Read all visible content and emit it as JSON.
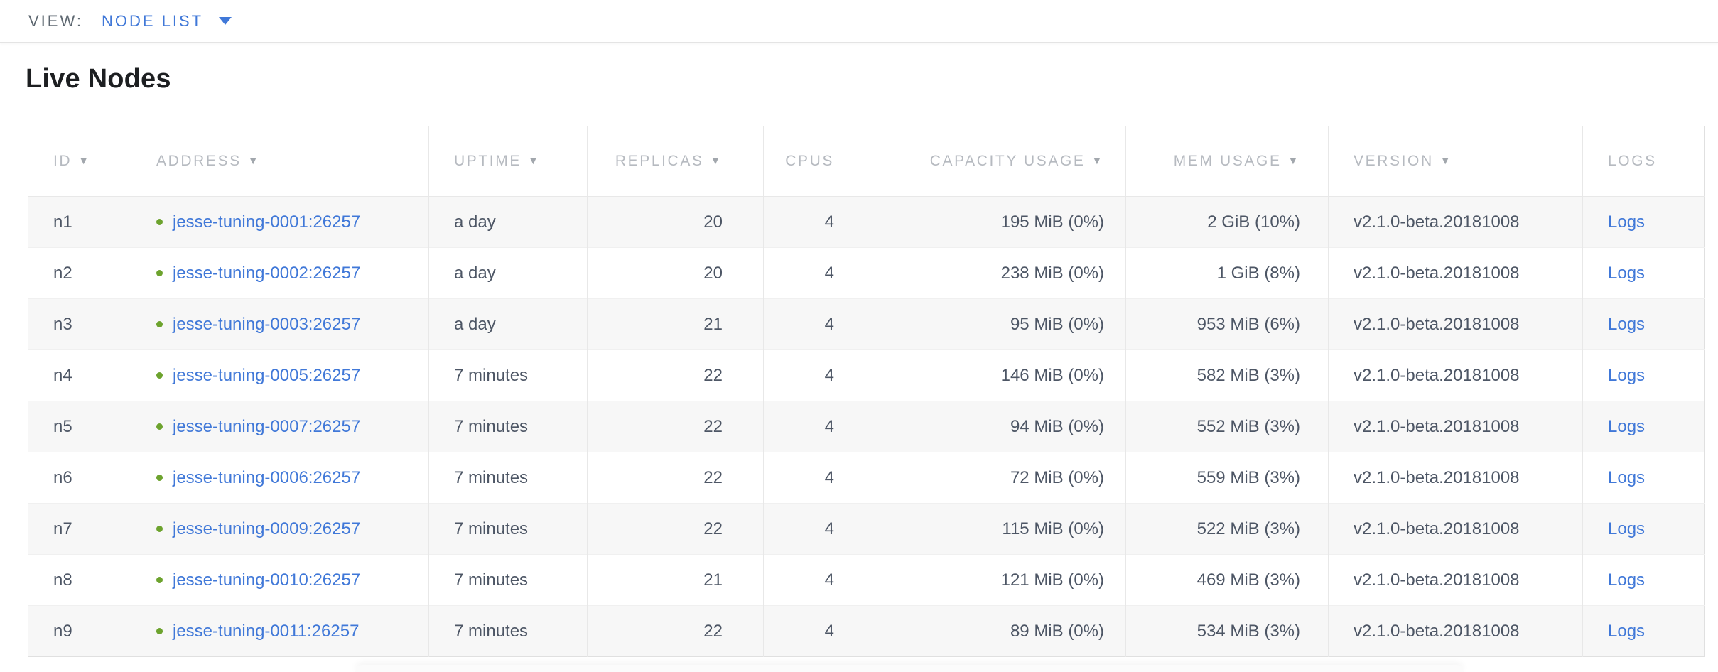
{
  "colors": {
    "accent_blue": "#4078d8",
    "live_green": "#6da32e"
  },
  "view_bar": {
    "label": "VIEW:",
    "selected_view": "NODE LIST"
  },
  "section_title": "Live Nodes",
  "icons": {
    "sort_desc": "▼"
  },
  "table": {
    "columns": [
      {
        "key": "id",
        "label": "ID",
        "sortable": true
      },
      {
        "key": "address",
        "label": "ADDRESS",
        "sortable": true
      },
      {
        "key": "uptime",
        "label": "UPTIME",
        "sortable": true
      },
      {
        "key": "replicas",
        "label": "REPLICAS",
        "sortable": true
      },
      {
        "key": "cpus",
        "label": "CPUS",
        "sortable": false
      },
      {
        "key": "capacity",
        "label": "CAPACITY USAGE",
        "sortable": true
      },
      {
        "key": "mem",
        "label": "MEM USAGE",
        "sortable": true
      },
      {
        "key": "version",
        "label": "VERSION",
        "sortable": true
      },
      {
        "key": "logs",
        "label": "LOGS",
        "sortable": false
      }
    ],
    "rows": [
      {
        "id": "n1",
        "address": "jesse-tuning-0001:26257",
        "uptime": "a day",
        "replicas": "20",
        "cpus": "4",
        "capacity": "195 MiB (0%)",
        "mem": "2 GiB (10%)",
        "version": "v2.1.0-beta.20181008",
        "logs": "Logs"
      },
      {
        "id": "n2",
        "address": "jesse-tuning-0002:26257",
        "uptime": "a day",
        "replicas": "20",
        "cpus": "4",
        "capacity": "238 MiB (0%)",
        "mem": "1 GiB (8%)",
        "version": "v2.1.0-beta.20181008",
        "logs": "Logs"
      },
      {
        "id": "n3",
        "address": "jesse-tuning-0003:26257",
        "uptime": "a day",
        "replicas": "21",
        "cpus": "4",
        "capacity": "95 MiB (0%)",
        "mem": "953 MiB (6%)",
        "version": "v2.1.0-beta.20181008",
        "logs": "Logs"
      },
      {
        "id": "n4",
        "address": "jesse-tuning-0005:26257",
        "uptime": "7 minutes",
        "replicas": "22",
        "cpus": "4",
        "capacity": "146 MiB (0%)",
        "mem": "582 MiB (3%)",
        "version": "v2.1.0-beta.20181008",
        "logs": "Logs"
      },
      {
        "id": "n5",
        "address": "jesse-tuning-0007:26257",
        "uptime": "7 minutes",
        "replicas": "22",
        "cpus": "4",
        "capacity": "94 MiB (0%)",
        "mem": "552 MiB (3%)",
        "version": "v2.1.0-beta.20181008",
        "logs": "Logs"
      },
      {
        "id": "n6",
        "address": "jesse-tuning-0006:26257",
        "uptime": "7 minutes",
        "replicas": "22",
        "cpus": "4",
        "capacity": "72 MiB (0%)",
        "mem": "559 MiB (3%)",
        "version": "v2.1.0-beta.20181008",
        "logs": "Logs"
      },
      {
        "id": "n7",
        "address": "jesse-tuning-0009:26257",
        "uptime": "7 minutes",
        "replicas": "22",
        "cpus": "4",
        "capacity": "115 MiB (0%)",
        "mem": "522 MiB (3%)",
        "version": "v2.1.0-beta.20181008",
        "logs": "Logs"
      },
      {
        "id": "n8",
        "address": "jesse-tuning-0010:26257",
        "uptime": "7 minutes",
        "replicas": "21",
        "cpus": "4",
        "capacity": "121 MiB (0%)",
        "mem": "469 MiB (3%)",
        "version": "v2.1.0-beta.20181008",
        "logs": "Logs"
      },
      {
        "id": "n9",
        "address": "jesse-tuning-0011:26257",
        "uptime": "7 minutes",
        "replicas": "22",
        "cpus": "4",
        "capacity": "89 MiB (0%)",
        "mem": "534 MiB (3%)",
        "version": "v2.1.0-beta.20181008",
        "logs": "Logs"
      }
    ]
  }
}
